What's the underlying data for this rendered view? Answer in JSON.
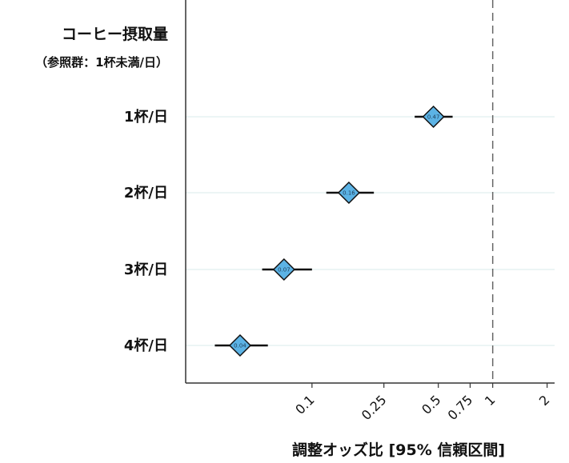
{
  "chart_data": {
    "type": "forest",
    "header_lines": [
      "コーヒー摂取量",
      "（参照群：1杯未満/日）"
    ],
    "xlabel": "調整オッズ比 [95% 信頼区間]",
    "x_scale": "log",
    "xlim": [
      0.02,
      2.2
    ],
    "reference_line": 1,
    "x_ticks": [
      {
        "value": 0.1,
        "label": "0.1"
      },
      {
        "value": 0.25,
        "label": "0.25"
      },
      {
        "value": 0.5,
        "label": "0.5"
      },
      {
        "value": 0.75,
        "label": "0.75"
      },
      {
        "value": 1,
        "label": "1"
      },
      {
        "value": 2,
        "label": "2"
      }
    ],
    "rows": [
      {
        "label": "1杯/日",
        "estimate": 0.47,
        "estimate_label": "0.47",
        "ci": [
          0.37,
          0.6
        ]
      },
      {
        "label": "2杯/日",
        "estimate": 0.16,
        "estimate_label": "0.16",
        "ci": [
          0.12,
          0.22
        ]
      },
      {
        "label": "3杯/日",
        "estimate": 0.07,
        "estimate_label": "0.07",
        "ci": [
          0.053,
          0.1
        ]
      },
      {
        "label": "4杯/日",
        "estimate": 0.04,
        "estimate_label": "0.04",
        "ci": [
          0.029,
          0.057
        ]
      }
    ],
    "grid": true,
    "colors": {
      "marker_fill": "#5cb3e5",
      "marker_stroke": "#111111",
      "ci_line": "#111111",
      "reference_line": "#666666",
      "grid": "#e6f2f2"
    }
  }
}
